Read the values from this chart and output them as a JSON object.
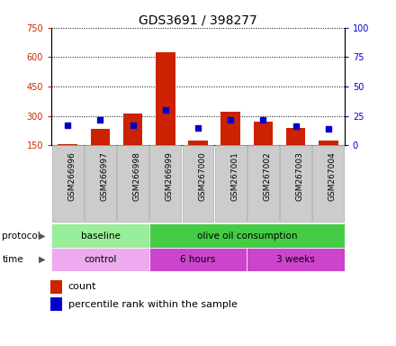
{
  "title": "GDS3691 / 398277",
  "samples": [
    "GSM266996",
    "GSM266997",
    "GSM266998",
    "GSM266999",
    "GSM267000",
    "GSM267001",
    "GSM267002",
    "GSM267003",
    "GSM267004"
  ],
  "count_values": [
    158,
    232,
    310,
    625,
    172,
    322,
    272,
    237,
    172
  ],
  "percentile_values": [
    17,
    22,
    17,
    30,
    15,
    22,
    22,
    16,
    14
  ],
  "ylim_left": [
    150,
    750
  ],
  "ylim_right": [
    0,
    100
  ],
  "left_ticks": [
    150,
    300,
    450,
    600,
    750
  ],
  "right_ticks": [
    0,
    25,
    50,
    75,
    100
  ],
  "red_color": "#cc2200",
  "blue_color": "#0000cc",
  "left_axis_color": "#cc2200",
  "right_axis_color": "#0000cc",
  "bg_gray": "#cccccc",
  "protocol_baseline_color": "#99ee99",
  "protocol_olive_color": "#44cc44",
  "time_control_color": "#eeaaee",
  "time_6h_color": "#cc44cc",
  "time_3w_color": "#cc44cc",
  "legend_count_label": "count",
  "legend_pct_label": "percentile rank within the sample"
}
